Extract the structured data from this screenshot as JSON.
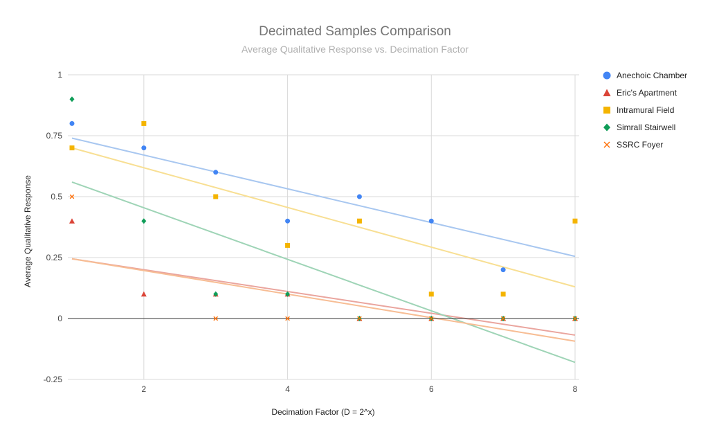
{
  "chart_data": {
    "type": "scatter",
    "title": "Decimated Samples Comparison",
    "subtitle": "Average Qualitative Response vs. Decimation Factor",
    "xlabel": "Decimation Factor  (D = 2^x)",
    "ylabel": "Average Qualitative Response",
    "xlim": [
      1,
      8
    ],
    "ylim": [
      -0.25,
      1
    ],
    "x_ticks": [
      2,
      4,
      6,
      8
    ],
    "y_ticks": [
      -0.25,
      0,
      0.25,
      0.5,
      0.75,
      1
    ],
    "x_tick_labels": [
      "2",
      "4",
      "6",
      "8"
    ],
    "y_tick_labels": [
      "-0.25",
      "0",
      "0.25",
      "0.5",
      "0.75",
      "1"
    ],
    "grid": true,
    "legend_position": "right",
    "series": [
      {
        "name": "Anechoic Chamber",
        "color": "#4285f4",
        "trend_color": "#a8c7f0",
        "marker": "circle",
        "points": [
          [
            1,
            0.8
          ],
          [
            2,
            0.7
          ],
          [
            3,
            0.6
          ],
          [
            4,
            0.4
          ],
          [
            5,
            0.5
          ],
          [
            6,
            0.4
          ],
          [
            7,
            0.2
          ]
        ],
        "trendline": [
          [
            1,
            0.74
          ],
          [
            8,
            0.255
          ]
        ]
      },
      {
        "name": "Eric's Apartment",
        "color": "#db4437",
        "trend_color": "#eaa59e",
        "marker": "triangle",
        "points": [
          [
            1,
            0.4
          ],
          [
            2,
            0.1
          ],
          [
            3,
            0.1
          ],
          [
            4,
            0.1
          ],
          [
            5,
            0
          ],
          [
            6,
            0
          ],
          [
            7,
            0
          ],
          [
            8,
            0
          ]
        ],
        "trendline": [
          [
            1,
            0.245
          ],
          [
            8,
            -0.068
          ]
        ]
      },
      {
        "name": "Intramural Field",
        "color": "#f4b400",
        "trend_color": "#f8df93",
        "marker": "square",
        "points": [
          [
            1,
            0.7
          ],
          [
            2,
            0.8
          ],
          [
            3,
            0.5
          ],
          [
            4,
            0.3
          ],
          [
            5,
            0.4
          ],
          [
            6,
            0.1
          ],
          [
            7,
            0.1
          ],
          [
            8,
            0.4
          ]
        ],
        "trendline": [
          [
            1,
            0.7
          ],
          [
            8,
            0.13
          ]
        ]
      },
      {
        "name": "Simrall Stairwell",
        "color": "#0f9d58",
        "trend_color": "#9ed4b6",
        "marker": "diamond",
        "points": [
          [
            1,
            0.9
          ],
          [
            2,
            0.4
          ],
          [
            3,
            0.1
          ],
          [
            4,
            0.1
          ],
          [
            5,
            0
          ],
          [
            6,
            0
          ],
          [
            7,
            0
          ],
          [
            8,
            0
          ]
        ],
        "trendline": [
          [
            1,
            0.56
          ],
          [
            8,
            -0.18
          ]
        ]
      },
      {
        "name": "SSRC Foyer",
        "color": "#ff6d01",
        "trend_color": "#f7bd94",
        "marker": "x",
        "points": [
          [
            1,
            0.5
          ],
          [
            3,
            0
          ],
          [
            4,
            0
          ],
          [
            5,
            0
          ],
          [
            6,
            0
          ],
          [
            7,
            0
          ],
          [
            8,
            0
          ]
        ],
        "trendline": [
          [
            1,
            0.245
          ],
          [
            8,
            -0.093
          ]
        ]
      }
    ]
  }
}
